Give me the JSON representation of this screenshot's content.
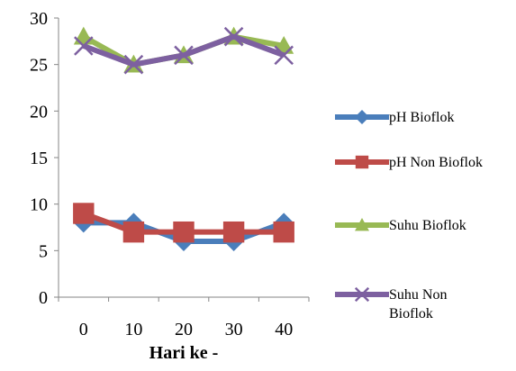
{
  "chart_data": {
    "type": "line",
    "title": "",
    "xlabel": "Hari ke -",
    "ylabel": "",
    "categories": [
      "0",
      "10",
      "20",
      "30",
      "40"
    ],
    "ylim": [
      0,
      30
    ],
    "yticks": [
      0,
      5,
      10,
      15,
      20,
      25,
      30
    ],
    "grid": false,
    "legend_position": "right",
    "series": [
      {
        "name": "pH Bioflok",
        "values": [
          8,
          8,
          6,
          6,
          8
        ],
        "color": "#4a7ebb",
        "marker": "diamond"
      },
      {
        "name": "pH Non Bioflok",
        "values": [
          9,
          7,
          7,
          7,
          7
        ],
        "color": "#be4b48",
        "marker": "square"
      },
      {
        "name": "Suhu Bioflok",
        "values": [
          28,
          25,
          26,
          28,
          27
        ],
        "color": "#98b954",
        "marker": "triangle"
      },
      {
        "name": "Suhu Non Bioflok",
        "values": [
          27,
          25,
          26,
          28,
          26
        ],
        "color": "#7d60a0",
        "marker": "x"
      }
    ]
  }
}
